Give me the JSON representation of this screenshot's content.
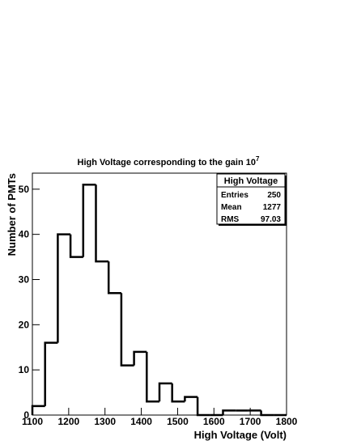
{
  "chart_data": {
    "type": "histogram",
    "title": "High Voltage corresponding to the gain 10",
    "title_superscript": "7",
    "x_label": "High Voltage (Volt)",
    "y_label": "Number of PMTs",
    "bins": [
      1100,
      1135,
      1170,
      1205,
      1240,
      1275,
      1310,
      1345,
      1380,
      1415,
      1450,
      1485,
      1520,
      1555,
      1590,
      1625,
      1660,
      1695,
      1730,
      1765,
      1800
    ],
    "values": [
      2,
      16,
      40,
      35,
      51,
      34,
      27,
      11,
      14,
      3,
      7,
      3,
      4,
      0,
      0,
      1,
      1,
      1,
      0,
      0
    ],
    "color": "#000000",
    "xlim": [
      1100,
      1800
    ],
    "xticks": [
      1100,
      1200,
      1300,
      1400,
      1500,
      1600,
      1700,
      1800
    ],
    "ylim": [
      0,
      53.55
    ],
    "yticks": [
      0,
      10,
      20,
      30,
      40,
      50
    ],
    "stats": {
      "title": "High Voltage",
      "rows": [
        [
          "Entries",
          250
        ],
        [
          "Mean",
          1277
        ],
        [
          "RMS",
          97.03
        ]
      ]
    }
  }
}
